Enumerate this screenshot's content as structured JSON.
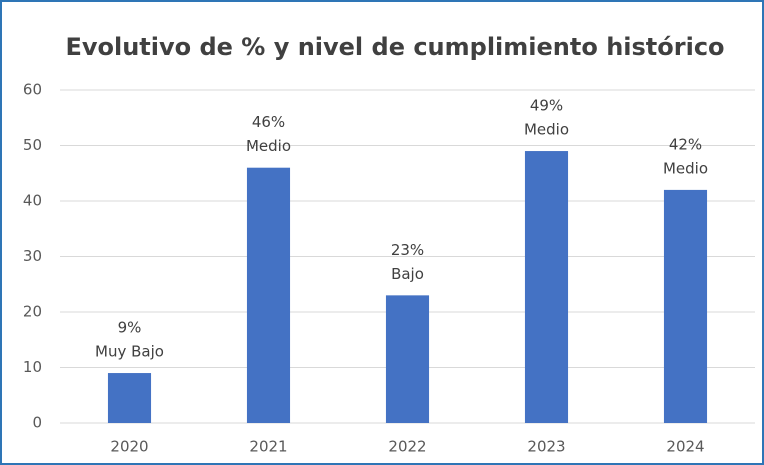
{
  "chart_data": {
    "type": "bar",
    "title": "Evolutivo de % y nivel de cumplimiento histórico",
    "categories": [
      "2020",
      "2021",
      "2022",
      "2023",
      "2024"
    ],
    "values": [
      9,
      46,
      23,
      49,
      42
    ],
    "value_labels": [
      "9%",
      "46%",
      "23%",
      "49%",
      "42%"
    ],
    "level_labels": [
      "Muy Bajo",
      "Medio",
      "Bajo",
      "Medio",
      "Medio"
    ],
    "color": "#4472c4",
    "ylim": [
      0,
      60
    ],
    "yticks": [
      0,
      10,
      20,
      30,
      40,
      50,
      60
    ],
    "grid": true
  }
}
